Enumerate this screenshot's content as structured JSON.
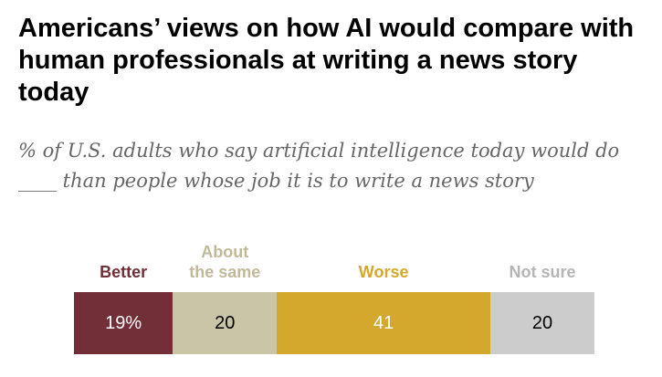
{
  "title": "Americans’ views on how AI would compare with human professionals at writing a news story today",
  "subtitle": "% of U.S. adults who say artificial intelligence today would do ____ than people whose job it is to write a news story",
  "chart_data": {
    "type": "bar",
    "orientation": "horizontal-stacked",
    "categories": [
      "Better",
      "About\nthe same",
      "Worse",
      "Not sure"
    ],
    "values": [
      19,
      20,
      41,
      20
    ],
    "value_labels": [
      "19%",
      "20",
      "41",
      "20"
    ],
    "colors": [
      "#722f37",
      "#cbc5a8",
      "#d4a82c",
      "#cccccc"
    ],
    "label_colors": [
      "#722f37",
      "#c2b89a",
      "#d4a82c",
      "#b5b5b5"
    ],
    "value_text_colors": [
      "#ffffff",
      "#000000",
      "#ffffff",
      "#000000"
    ],
    "total": 100
  }
}
